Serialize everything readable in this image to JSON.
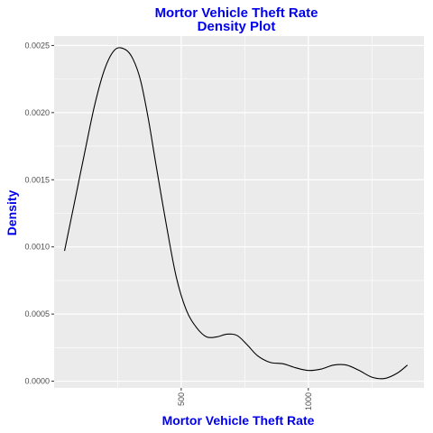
{
  "chart_data": {
    "type": "line",
    "title": "Mortor Vehicle Theft Rate",
    "subtitle": "Density Plot",
    "xlabel": "Mortor Vehicle Theft Rate",
    "ylabel": "Density",
    "xlim": [
      0,
      1455
    ],
    "ylim": [
      -5e-05,
      0.00257
    ],
    "x_ticks": [
      500,
      1000
    ],
    "y_ticks": [
      0.0,
      0.0005,
      0.001,
      0.0015,
      0.002,
      0.0025
    ],
    "y_tick_labels": [
      "0.0000",
      "0.0005",
      "0.0010",
      "0.0015",
      "0.0020",
      "0.0025"
    ],
    "x_tick_labels": [
      "500",
      "1000"
    ],
    "grid": true,
    "panel_background": "#ebebeb",
    "grid_color": "#ffffff",
    "line_color": "#000000",
    "text_color": "#0000ee",
    "series": [
      {
        "x": [
          41,
          80,
          120,
          160,
          200,
          240,
          280,
          310,
          340,
          370,
          400,
          440,
          480,
          520,
          560,
          600,
          640,
          680,
          720,
          760,
          800,
          850,
          900,
          950,
          1000,
          1050,
          1100,
          1150,
          1200,
          1250,
          1300,
          1350,
          1390
        ],
        "y": [
          0.00097,
          0.00133,
          0.0017,
          0.00206,
          0.00233,
          0.00247,
          0.00247,
          0.0024,
          0.00224,
          0.00196,
          0.00162,
          0.00118,
          0.00078,
          0.00053,
          0.0004,
          0.00033,
          0.00033,
          0.00035,
          0.00034,
          0.00027,
          0.00019,
          0.00014,
          0.00013,
          0.0001,
          8e-05,
          9e-05,
          0.00012,
          0.00012,
          8e-05,
          3e-05,
          2e-05,
          6e-05,
          0.00012
        ]
      }
    ]
  }
}
